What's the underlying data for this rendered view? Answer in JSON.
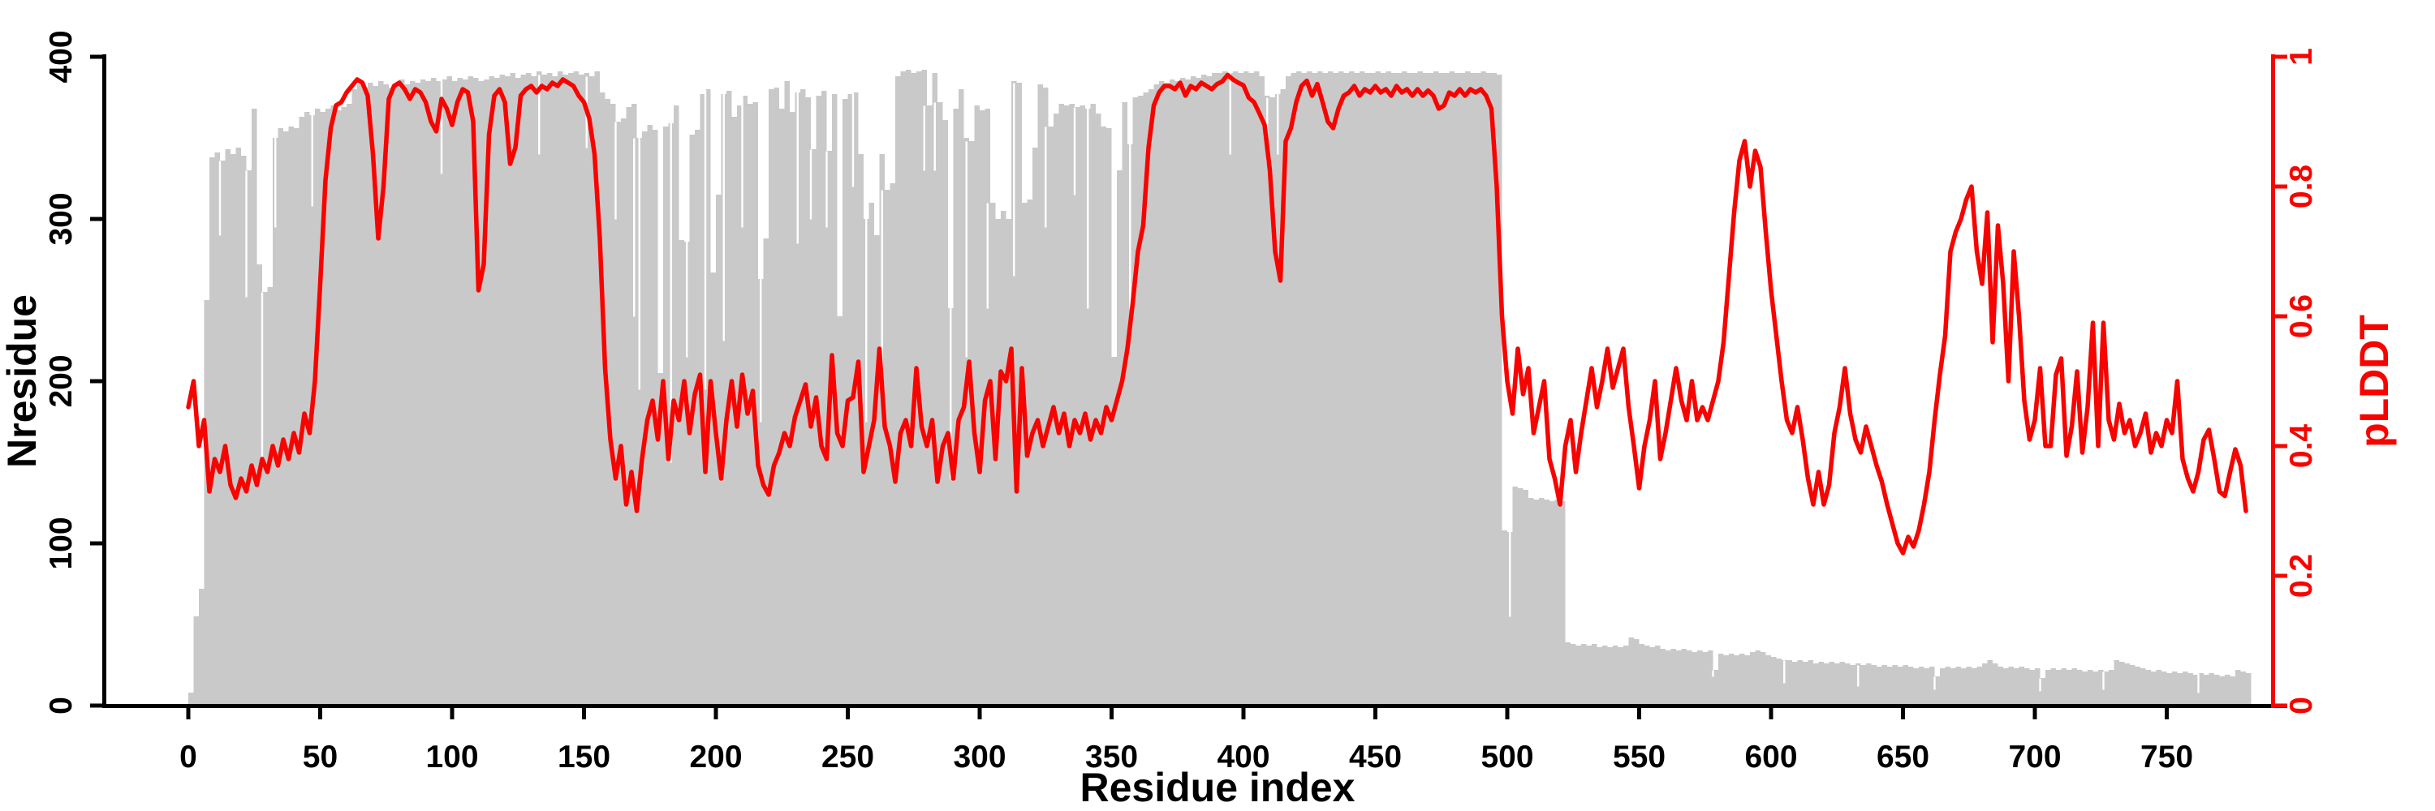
{
  "chart_data": {
    "type": "composite",
    "title": "",
    "x_axis": {
      "label": "Residue index",
      "ticks": [
        0,
        50,
        100,
        150,
        200,
        250,
        300,
        350,
        400,
        450,
        500,
        550,
        600,
        650,
        700,
        750
      ],
      "range": [
        -31,
        811
      ],
      "color": "#000000"
    },
    "left_axis": {
      "label": "Nresidue",
      "ticks": [
        0,
        100,
        200,
        300,
        400
      ],
      "range": [
        0,
        400
      ],
      "color": "#000000"
    },
    "right_axis": {
      "label": "pLDDT",
      "ticks": [
        0,
        0.2,
        0.4,
        0.6,
        0.8,
        1
      ],
      "tick_labels": [
        "0",
        "0.2",
        "0.4",
        "0.6",
        "0.8",
        "1"
      ],
      "range": [
        0,
        1
      ],
      "color": "#f70400"
    },
    "colors": {
      "bars": "#c9c9c9",
      "line": "#f70400",
      "background": "#ffffff"
    },
    "series": [
      {
        "name": "Nresidue",
        "type": "bar-silhouette",
        "axis": "left",
        "x_start": 0,
        "x_step": 2,
        "values": [
          8,
          55,
          72,
          250,
          338,
          341,
          336,
          343,
          340,
          344,
          339,
          330,
          368,
          272,
          255,
          258,
          350,
          356,
          354,
          357,
          356,
          363,
          366,
          364,
          368,
          366,
          368,
          370,
          367,
          369,
          371,
          380,
          383,
          381,
          384,
          382,
          385,
          383,
          381,
          384,
          386,
          383,
          385,
          384,
          386,
          385,
          387,
          385,
          386,
          388,
          385,
          387,
          386,
          388,
          387,
          385,
          386,
          388,
          387,
          389,
          388,
          390,
          387,
          389,
          390,
          388,
          391,
          389,
          390,
          388,
          391,
          389,
          390,
          391,
          389,
          390,
          388,
          391,
          378,
          374,
          371,
          360,
          362,
          369,
          371,
          350,
          354,
          358,
          355,
          205,
          357,
          359,
          370,
          287,
          286,
          352,
          355,
          377,
          380,
          267,
          315,
          377,
          379,
          363,
          370,
          376,
          371,
          372,
          263,
          288,
          380,
          381,
          368,
          385,
          366,
          378,
          380,
          375,
          343,
          376,
          379,
          342,
          377,
          240,
          374,
          377,
          378,
          340,
          300,
          310,
          290,
          340,
          318,
          322,
          388,
          391,
          392,
          390,
          391,
          392,
          370,
          390,
          372,
          361,
          245,
          368,
          380,
          350,
          348,
          370,
          367,
          368,
          310,
          300,
          305,
          300,
          385,
          384,
          310,
          312,
          344,
          383,
          381,
          357,
          365,
          371,
          370,
          371,
          369,
          370,
          368,
          371,
          365,
          357,
          356,
          215,
          330,
          372,
          346,
          375,
          376,
          378,
          380,
          383,
          385,
          384,
          386,
          385,
          387,
          386,
          388,
          387,
          389,
          388,
          390,
          390,
          391,
          390,
          391,
          390,
          391,
          390,
          391,
          388,
          376,
          375,
          377,
          380,
          388,
          390,
          391,
          390,
          391,
          390,
          391,
          390,
          391,
          390,
          391,
          390,
          391,
          390,
          391,
          390,
          390,
          391,
          390,
          391,
          390,
          390,
          391,
          390,
          390,
          391,
          390,
          390,
          391,
          390,
          390,
          391,
          390,
          390,
          391,
          390,
          390,
          391,
          390,
          390,
          389,
          108,
          107,
          135,
          134,
          133,
          128,
          127,
          128,
          127,
          126,
          127,
          126,
          39,
          38,
          37,
          38,
          37,
          38,
          36,
          37,
          36,
          37,
          36,
          37,
          42,
          41,
          38,
          37,
          36,
          37,
          35,
          34,
          35,
          34,
          35,
          34,
          33,
          34,
          33,
          34,
          22,
          32,
          31,
          32,
          31,
          32,
          31,
          33,
          34,
          33,
          31,
          30,
          29,
          28,
          28,
          27,
          28,
          27,
          28,
          26,
          27,
          26,
          27,
          26,
          27,
          26,
          25,
          26,
          25,
          26,
          25,
          24,
          25,
          24,
          25,
          24,
          25,
          24,
          23,
          24,
          23,
          24,
          18,
          23,
          24,
          23,
          24,
          23,
          24,
          23,
          24,
          26,
          28,
          26,
          24,
          23,
          24,
          23,
          24,
          23,
          22,
          23,
          17,
          22,
          23,
          22,
          23,
          22,
          23,
          22,
          21,
          22,
          21,
          22,
          21,
          22,
          28,
          27,
          26,
          25,
          24,
          23,
          22,
          21,
          22,
          21,
          20,
          21,
          20,
          21,
          20,
          19,
          20,
          19,
          20,
          19,
          18,
          19,
          18,
          22,
          21,
          20
        ],
        "gaps": [
          [
            12,
            290
          ],
          [
            22,
            252
          ],
          [
            28,
            150
          ],
          [
            33,
            295
          ],
          [
            47,
            308
          ],
          [
            96,
            328
          ],
          [
            133,
            340
          ],
          [
            151,
            344
          ],
          [
            162,
            300
          ],
          [
            169,
            240
          ],
          [
            171,
            195
          ],
          [
            183,
            150
          ],
          [
            189,
            215
          ],
          [
            196,
            195
          ],
          [
            203,
            225
          ],
          [
            210,
            295
          ],
          [
            217,
            175
          ],
          [
            231,
            285
          ],
          [
            236,
            300
          ],
          [
            242,
            295
          ],
          [
            252,
            320
          ],
          [
            257,
            175
          ],
          [
            263,
            195
          ],
          [
            279,
            330
          ],
          [
            283,
            330
          ],
          [
            289,
            140
          ],
          [
            295,
            215
          ],
          [
            303,
            245
          ],
          [
            313,
            265
          ],
          [
            325,
            295
          ],
          [
            336,
            315
          ],
          [
            341,
            245
          ],
          [
            357,
            245
          ],
          [
            395,
            340
          ],
          [
            409,
            335
          ],
          [
            413,
            340
          ],
          [
            501,
            55
          ],
          [
            578,
            18
          ],
          [
            605,
            14
          ],
          [
            633,
            12
          ],
          [
            662,
            10
          ],
          [
            702,
            9
          ],
          [
            726,
            10
          ],
          [
            762,
            8
          ]
        ]
      },
      {
        "name": "pLDDT",
        "type": "line",
        "axis": "right",
        "x_start": 0,
        "x_step": 2,
        "values": [
          0.46,
          0.5,
          0.4,
          0.44,
          0.33,
          0.38,
          0.36,
          0.4,
          0.34,
          0.32,
          0.35,
          0.33,
          0.37,
          0.34,
          0.38,
          0.36,
          0.4,
          0.37,
          0.41,
          0.38,
          0.42,
          0.39,
          0.45,
          0.42,
          0.5,
          0.65,
          0.81,
          0.89,
          0.925,
          0.93,
          0.945,
          0.955,
          0.965,
          0.96,
          0.94,
          0.85,
          0.72,
          0.8,
          0.935,
          0.955,
          0.96,
          0.95,
          0.935,
          0.95,
          0.945,
          0.93,
          0.9,
          0.885,
          0.935,
          0.92,
          0.895,
          0.93,
          0.95,
          0.945,
          0.9,
          0.64,
          0.68,
          0.88,
          0.94,
          0.95,
          0.93,
          0.835,
          0.86,
          0.94,
          0.95,
          0.955,
          0.945,
          0.955,
          0.95,
          0.96,
          0.955,
          0.965,
          0.96,
          0.955,
          0.94,
          0.93,
          0.905,
          0.85,
          0.72,
          0.52,
          0.41,
          0.35,
          0.4,
          0.31,
          0.36,
          0.3,
          0.38,
          0.44,
          0.47,
          0.41,
          0.5,
          0.38,
          0.47,
          0.44,
          0.5,
          0.42,
          0.48,
          0.51,
          0.36,
          0.5,
          0.42,
          0.35,
          0.44,
          0.5,
          0.43,
          0.51,
          0.45,
          0.485,
          0.37,
          0.34,
          0.325,
          0.37,
          0.39,
          0.42,
          0.4,
          0.445,
          0.47,
          0.495,
          0.43,
          0.475,
          0.4,
          0.38,
          0.54,
          0.42,
          0.4,
          0.47,
          0.475,
          0.53,
          0.36,
          0.4,
          0.44,
          0.55,
          0.43,
          0.4,
          0.345,
          0.42,
          0.44,
          0.4,
          0.52,
          0.43,
          0.4,
          0.44,
          0.345,
          0.4,
          0.42,
          0.35,
          0.44,
          0.46,
          0.53,
          0.42,
          0.36,
          0.47,
          0.5,
          0.38,
          0.515,
          0.5,
          0.55,
          0.33,
          0.52,
          0.385,
          0.42,
          0.44,
          0.4,
          0.43,
          0.46,
          0.42,
          0.45,
          0.4,
          0.44,
          0.42,
          0.45,
          0.41,
          0.44,
          0.42,
          0.46,
          0.44,
          0.47,
          0.5,
          0.55,
          0.62,
          0.7,
          0.74,
          0.86,
          0.925,
          0.945,
          0.955,
          0.955,
          0.95,
          0.96,
          0.94,
          0.955,
          0.95,
          0.96,
          0.955,
          0.95,
          0.958,
          0.962,
          0.972,
          0.965,
          0.96,
          0.956,
          0.937,
          0.93,
          0.913,
          0.895,
          0.825,
          0.7,
          0.655,
          0.87,
          0.89,
          0.93,
          0.955,
          0.963,
          0.94,
          0.958,
          0.93,
          0.9,
          0.89,
          0.92,
          0.94,
          0.945,
          0.955,
          0.94,
          0.95,
          0.945,
          0.955,
          0.945,
          0.95,
          0.94,
          0.955,
          0.945,
          0.95,
          0.94,
          0.95,
          0.94,
          0.948,
          0.94,
          0.92,
          0.925,
          0.945,
          0.94,
          0.95,
          0.94,
          0.95,
          0.945,
          0.95,
          0.94,
          0.92,
          0.8,
          0.6,
          0.5,
          0.45,
          0.55,
          0.48,
          0.52,
          0.42,
          0.46,
          0.5,
          0.38,
          0.35,
          0.31,
          0.4,
          0.44,
          0.36,
          0.42,
          0.47,
          0.52,
          0.46,
          0.5,
          0.55,
          0.49,
          0.52,
          0.55,
          0.46,
          0.4,
          0.335,
          0.4,
          0.44,
          0.5,
          0.38,
          0.42,
          0.47,
          0.52,
          0.47,
          0.44,
          0.5,
          0.44,
          0.46,
          0.44,
          0.47,
          0.5,
          0.56,
          0.66,
          0.76,
          0.84,
          0.87,
          0.8,
          0.855,
          0.83,
          0.73,
          0.64,
          0.57,
          0.5,
          0.44,
          0.42,
          0.46,
          0.41,
          0.35,
          0.31,
          0.36,
          0.31,
          0.34,
          0.42,
          0.46,
          0.52,
          0.45,
          0.41,
          0.39,
          0.43,
          0.4,
          0.37,
          0.345,
          0.31,
          0.28,
          0.25,
          0.235,
          0.26,
          0.245,
          0.27,
          0.31,
          0.36,
          0.44,
          0.51,
          0.57,
          0.7,
          0.73,
          0.75,
          0.78,
          0.8,
          0.7,
          0.65,
          0.76,
          0.56,
          0.74,
          0.65,
          0.5,
          0.7,
          0.6,
          0.47,
          0.41,
          0.44,
          0.52,
          0.4,
          0.4,
          0.51,
          0.535,
          0.385,
          0.43,
          0.515,
          0.39,
          0.46,
          0.59,
          0.4,
          0.59,
          0.44,
          0.41,
          0.465,
          0.42,
          0.44,
          0.4,
          0.42,
          0.45,
          0.39,
          0.42,
          0.4,
          0.44,
          0.42,
          0.5,
          0.38,
          0.35,
          0.33,
          0.36,
          0.41,
          0.425,
          0.38,
          0.33,
          0.323,
          0.36,
          0.395,
          0.37,
          0.3
        ]
      }
    ]
  }
}
